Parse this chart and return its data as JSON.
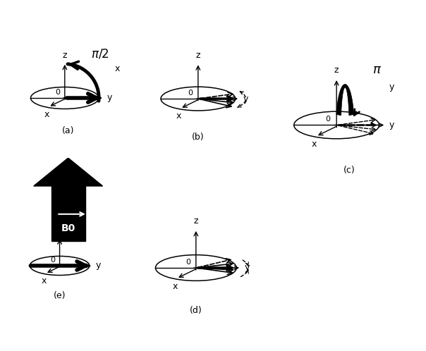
{
  "bg_color": "#ffffff",
  "panel_labels": [
    "(a)",
    "(b)",
    "(c)",
    "(d)",
    "(e)"
  ],
  "pi2_label": [
    "$\\pi/2$",
    "x"
  ],
  "pi_label": [
    "$\\pi$",
    "y"
  ],
  "b0_label": "B0"
}
